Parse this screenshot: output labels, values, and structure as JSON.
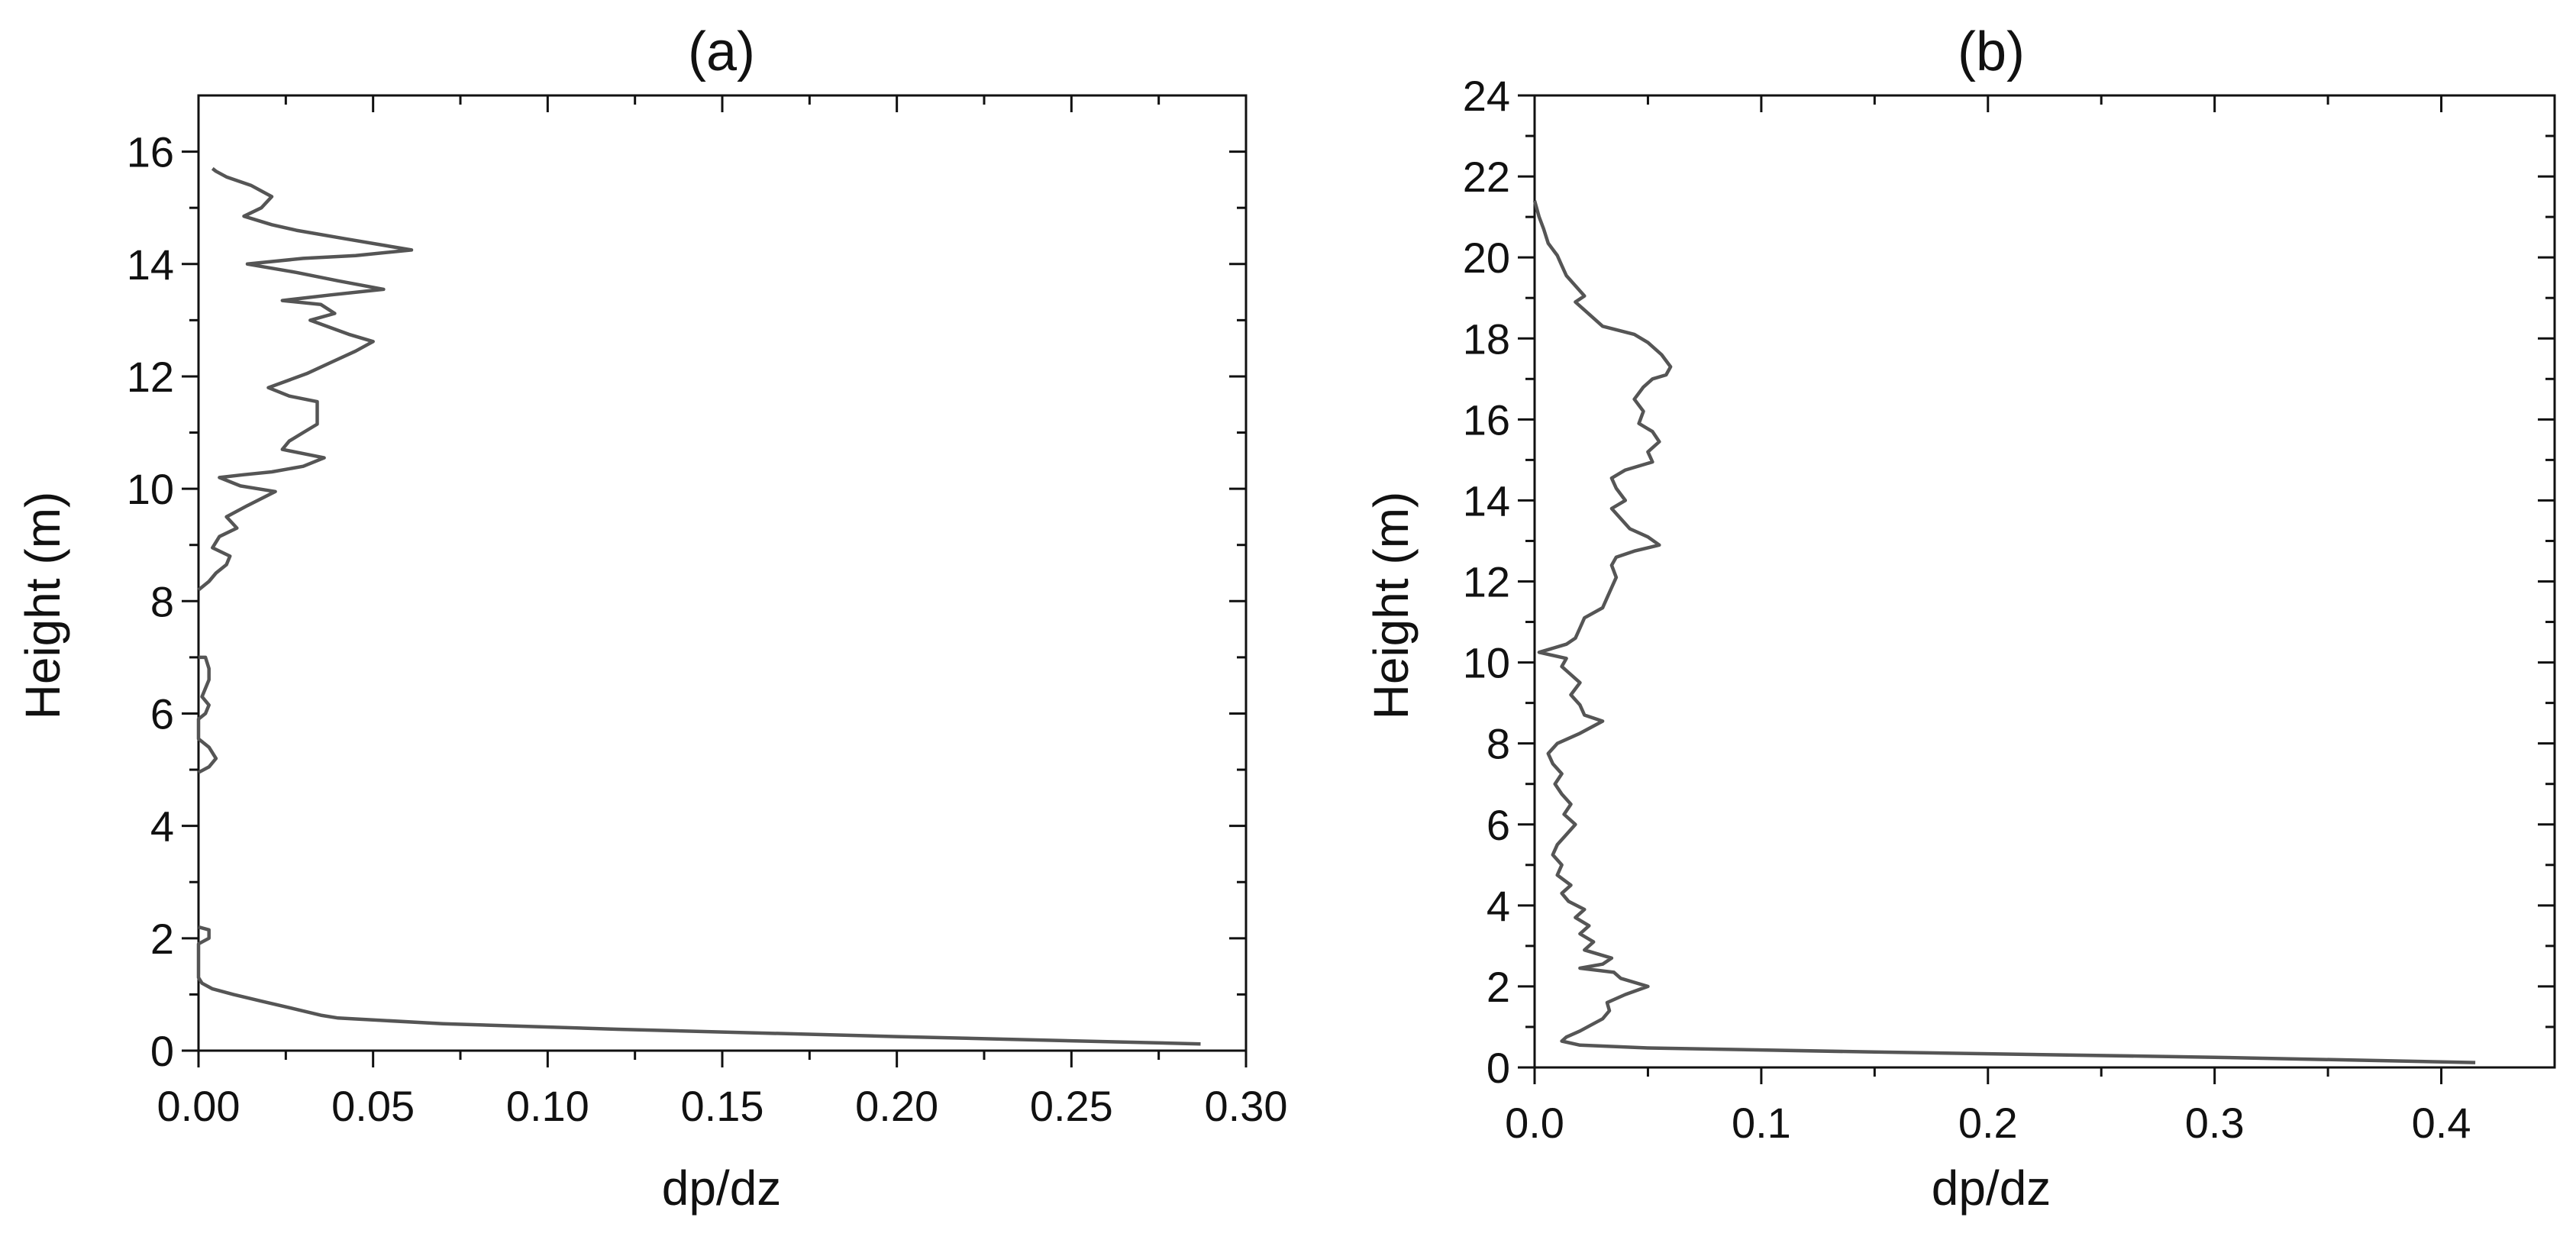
{
  "chart_data": [
    {
      "type": "line",
      "title": "(a)",
      "xlabel": "dp/dz",
      "ylabel": "Height (m)",
      "xlim": [
        0,
        0.3
      ],
      "ylim": [
        0,
        17
      ],
      "xticks": [
        "0.00",
        "0.05",
        "0.10",
        "0.15",
        "0.20",
        "0.25",
        "0.30"
      ],
      "yticks": [
        "0",
        "2",
        "4",
        "6",
        "8",
        "10",
        "12",
        "14",
        "16"
      ],
      "line_color": "#555555",
      "grid": false,
      "series": [
        {
          "segments": [
            [
              [
                0.287,
                0.12
              ],
              [
                0.2,
                0.25
              ],
              [
                0.12,
                0.38
              ],
              [
                0.07,
                0.48
              ],
              [
                0.04,
                0.58
              ],
              [
                0.035,
                0.63
              ],
              [
                0.027,
                0.75
              ],
              [
                0.018,
                0.88
              ],
              [
                0.01,
                1.0
              ],
              [
                0.004,
                1.1
              ],
              [
                0.001,
                1.2
              ],
              [
                0,
                1.3
              ],
              [
                0,
                1.9
              ],
              [
                0.003,
                2.0
              ],
              [
                0.003,
                2.15
              ],
              [
                0,
                2.2
              ]
            ],
            [
              [
                0,
                4.95
              ],
              [
                0.003,
                5.05
              ],
              [
                0.005,
                5.2
              ],
              [
                0.003,
                5.4
              ],
              [
                0,
                5.55
              ],
              [
                0,
                5.9
              ],
              [
                0.002,
                6.0
              ],
              [
                0.003,
                6.15
              ],
              [
                0.001,
                6.3
              ],
              [
                0.003,
                6.6
              ],
              [
                0.003,
                6.8
              ],
              [
                0.002,
                7.0
              ],
              [
                0,
                7.0
              ]
            ],
            [
              [
                0,
                8.2
              ],
              [
                0.003,
                8.35
              ],
              [
                0.005,
                8.5
              ],
              [
                0.008,
                8.65
              ],
              [
                0.009,
                8.8
              ],
              [
                0.004,
                8.95
              ],
              [
                0.006,
                9.15
              ],
              [
                0.011,
                9.3
              ],
              [
                0.008,
                9.5
              ],
              [
                0.014,
                9.7
              ],
              [
                0.022,
                9.95
              ],
              [
                0.012,
                10.05
              ],
              [
                0.006,
                10.2
              ],
              [
                0.013,
                10.25
              ],
              [
                0.021,
                10.3
              ],
              [
                0.03,
                10.4
              ],
              [
                0.036,
                10.55
              ],
              [
                0.024,
                10.7
              ],
              [
                0.026,
                10.85
              ],
              [
                0.03,
                11.0
              ],
              [
                0.034,
                11.15
              ],
              [
                0.034,
                11.35
              ],
              [
                0.034,
                11.55
              ],
              [
                0.026,
                11.65
              ],
              [
                0.02,
                11.8
              ],
              [
                0.031,
                12.05
              ],
              [
                0.038,
                12.25
              ],
              [
                0.045,
                12.45
              ],
              [
                0.05,
                12.62
              ],
              [
                0.043,
                12.75
              ],
              [
                0.032,
                13.0
              ],
              [
                0.039,
                13.12
              ],
              [
                0.035,
                13.28
              ],
              [
                0.024,
                13.35
              ],
              [
                0.038,
                13.45
              ],
              [
                0.053,
                13.55
              ],
              [
                0.04,
                13.7
              ],
              [
                0.028,
                13.85
              ],
              [
                0.014,
                14.0
              ],
              [
                0.03,
                14.1
              ],
              [
                0.045,
                14.15
              ],
              [
                0.061,
                14.25
              ],
              [
                0.042,
                14.45
              ],
              [
                0.028,
                14.6
              ],
              [
                0.021,
                14.7
              ],
              [
                0.013,
                14.85
              ],
              [
                0.018,
                15.0
              ],
              [
                0.021,
                15.2
              ],
              [
                0.015,
                15.4
              ],
              [
                0.008,
                15.55
              ],
              [
                0.005,
                15.65
              ],
              [
                0.004,
                15.7
              ]
            ]
          ]
        }
      ]
    },
    {
      "type": "line",
      "title": "(b)",
      "xlabel": "dp/dz",
      "ylabel": "Height (m)",
      "xlim": [
        0,
        0.45
      ],
      "ylim": [
        0,
        24
      ],
      "xticks": [
        "0.0",
        "0.1",
        "0.2",
        "0.3",
        "0.4"
      ],
      "yticks": [
        "0",
        "2",
        "4",
        "6",
        "8",
        "10",
        "12",
        "14",
        "16",
        "18",
        "20",
        "22",
        "24"
      ],
      "line_color": "#555555",
      "grid": false,
      "series": [
        {
          "segments": [
            [
              [
                0.415,
                0.12
              ],
              [
                0.3,
                0.25
              ],
              [
                0.15,
                0.38
              ],
              [
                0.05,
                0.48
              ],
              [
                0.02,
                0.55
              ],
              [
                0.012,
                0.65
              ],
              [
                0.014,
                0.75
              ],
              [
                0.02,
                0.9
              ],
              [
                0.025,
                1.05
              ],
              [
                0.03,
                1.2
              ],
              [
                0.033,
                1.4
              ],
              [
                0.032,
                1.6
              ],
              [
                0.04,
                1.8
              ],
              [
                0.05,
                2.0
              ],
              [
                0.038,
                2.2
              ],
              [
                0.035,
                2.35
              ],
              [
                0.02,
                2.45
              ],
              [
                0.03,
                2.55
              ],
              [
                0.034,
                2.7
              ],
              [
                0.022,
                2.9
              ],
              [
                0.026,
                3.1
              ],
              [
                0.02,
                3.3
              ],
              [
                0.024,
                3.5
              ],
              [
                0.018,
                3.7
              ],
              [
                0.022,
                3.9
              ],
              [
                0.015,
                4.1
              ],
              [
                0.012,
                4.3
              ],
              [
                0.016,
                4.5
              ],
              [
                0.01,
                4.75
              ],
              [
                0.012,
                5.0
              ],
              [
                0.008,
                5.25
              ],
              [
                0.01,
                5.5
              ],
              [
                0.014,
                5.75
              ],
              [
                0.018,
                6.0
              ],
              [
                0.013,
                6.25
              ],
              [
                0.016,
                6.5
              ],
              [
                0.012,
                6.75
              ],
              [
                0.009,
                7.0
              ],
              [
                0.012,
                7.25
              ],
              [
                0.008,
                7.5
              ],
              [
                0.006,
                7.75
              ],
              [
                0.01,
                8.0
              ],
              [
                0.02,
                8.25
              ],
              [
                0.03,
                8.55
              ],
              [
                0.022,
                8.7
              ],
              [
                0.02,
                8.95
              ],
              [
                0.016,
                9.2
              ],
              [
                0.02,
                9.5
              ],
              [
                0.016,
                9.7
              ],
              [
                0.012,
                9.9
              ],
              [
                0.014,
                10.1
              ],
              [
                0.002,
                10.25
              ],
              [
                0.008,
                10.35
              ],
              [
                0.014,
                10.45
              ],
              [
                0.018,
                10.6
              ],
              [
                0.02,
                10.85
              ],
              [
                0.022,
                11.1
              ],
              [
                0.03,
                11.35
              ],
              [
                0.032,
                11.6
              ],
              [
                0.034,
                11.85
              ],
              [
                0.036,
                12.1
              ],
              [
                0.034,
                12.4
              ],
              [
                0.036,
                12.6
              ],
              [
                0.044,
                12.75
              ],
              [
                0.055,
                12.9
              ],
              [
                0.05,
                13.1
              ],
              [
                0.042,
                13.3
              ],
              [
                0.038,
                13.55
              ],
              [
                0.034,
                13.8
              ],
              [
                0.04,
                14.0
              ],
              [
                0.036,
                14.3
              ],
              [
                0.034,
                14.55
              ],
              [
                0.04,
                14.75
              ],
              [
                0.052,
                14.95
              ],
              [
                0.05,
                15.2
              ],
              [
                0.055,
                15.45
              ],
              [
                0.052,
                15.7
              ],
              [
                0.046,
                15.9
              ],
              [
                0.048,
                16.2
              ],
              [
                0.044,
                16.5
              ],
              [
                0.048,
                16.8
              ],
              [
                0.052,
                17.0
              ],
              [
                0.058,
                17.1
              ],
              [
                0.06,
                17.3
              ],
              [
                0.056,
                17.6
              ],
              [
                0.05,
                17.9
              ],
              [
                0.044,
                18.1
              ],
              [
                0.03,
                18.3
              ],
              [
                0.026,
                18.5
              ],
              [
                0.022,
                18.7
              ],
              [
                0.018,
                18.9
              ],
              [
                0.022,
                19.05
              ],
              [
                0.018,
                19.3
              ],
              [
                0.014,
                19.55
              ],
              [
                0.012,
                19.8
              ],
              [
                0.01,
                20.05
              ],
              [
                0.006,
                20.35
              ],
              [
                0.004,
                20.7
              ],
              [
                0.002,
                21.0
              ],
              [
                0,
                21.4
              ]
            ]
          ]
        }
      ]
    }
  ]
}
